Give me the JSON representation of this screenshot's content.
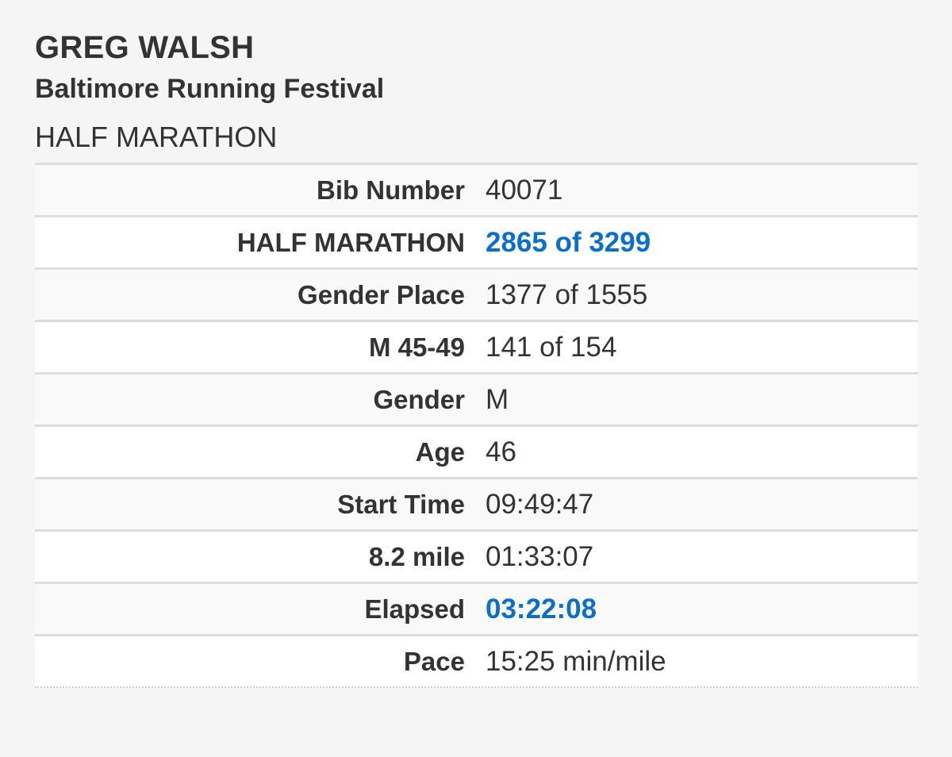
{
  "runner": {
    "name": "GREG WALSH",
    "event": "Baltimore Running Festival",
    "race": "HALF MARATHON"
  },
  "results": [
    {
      "label": "Bib Number",
      "value": "40071",
      "highlight": false
    },
    {
      "label": "HALF MARATHON",
      "value": "2865 of 3299",
      "highlight": true
    },
    {
      "label": "Gender Place",
      "value": "1377 of 1555",
      "highlight": false
    },
    {
      "label": "M 45-49",
      "value": "141 of 154",
      "highlight": false
    },
    {
      "label": "Gender",
      "value": "M",
      "highlight": false
    },
    {
      "label": "Age",
      "value": "46",
      "highlight": false
    },
    {
      "label": "Start Time",
      "value": "09:49:47",
      "highlight": false
    },
    {
      "label": "8.2 mile",
      "value": "01:33:07",
      "highlight": false
    },
    {
      "label": "Elapsed",
      "value": "03:22:08",
      "highlight": true
    },
    {
      "label": "Pace",
      "value": "15:25 min/mile",
      "highlight": false
    }
  ],
  "colors": {
    "highlight": "#0b6fc7",
    "text": "#333333",
    "background": "#f5f5f5"
  }
}
